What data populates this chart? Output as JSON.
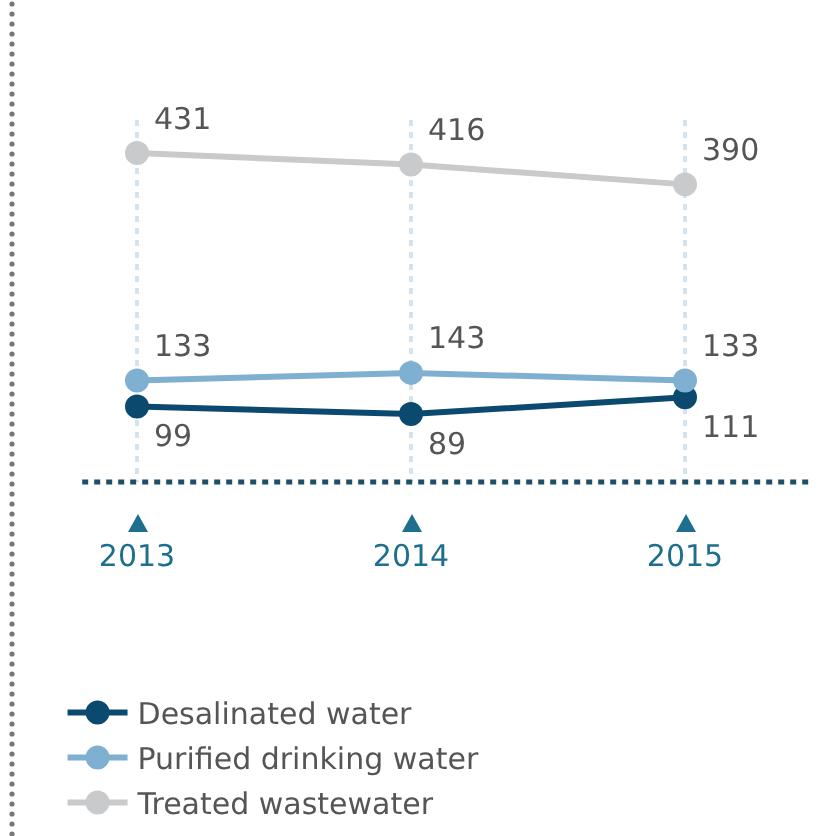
{
  "chart_data": {
    "type": "line",
    "categories": [
      "2013",
      "2014",
      "2015"
    ],
    "series": [
      {
        "name": "Desalinated water",
        "color": "#0b4a6e",
        "values": [
          99,
          89,
          111
        ]
      },
      {
        "name": "Purified drinking water",
        "color": "#7fb0d2",
        "values": [
          133,
          143,
          133
        ]
      },
      {
        "name": "Treated wastewater",
        "color": "#c9cacc",
        "values": [
          431,
          416,
          390
        ]
      }
    ],
    "data_labels": true,
    "marker": "circle",
    "line_style": "solid",
    "grid": "x",
    "legend": "bottom"
  }
}
